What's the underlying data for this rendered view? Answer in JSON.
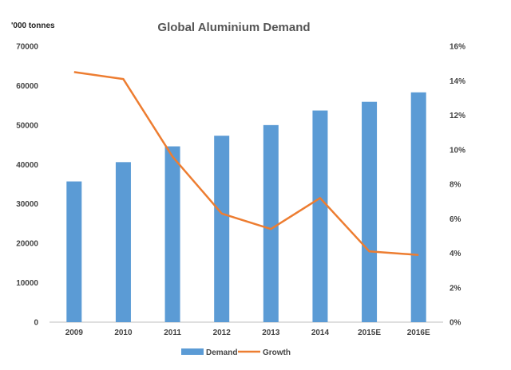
{
  "chart_data": {
    "type": "bar",
    "title": "Global Aluminium Demand",
    "ylabel": "'000 tonnes",
    "categories": [
      "2009",
      "2010",
      "2011",
      "2012",
      "2013",
      "2014",
      "2015E",
      "2016E"
    ],
    "series": [
      {
        "name": "Demand",
        "type": "bar",
        "axis": "left",
        "color": "#5b9bd5",
        "values": [
          35700,
          40600,
          44600,
          47300,
          50000,
          53700,
          55900,
          58300
        ]
      },
      {
        "name": "Growth",
        "type": "line",
        "axis": "right",
        "color": "#ed7d31",
        "values": [
          14.5,
          14.1,
          9.6,
          6.3,
          5.4,
          7.2,
          4.1,
          3.9
        ]
      }
    ],
    "ylim": [
      0,
      70000
    ],
    "y_ticks": [
      "0",
      "10000",
      "20000",
      "30000",
      "40000",
      "50000",
      "60000",
      "70000"
    ],
    "y2lim": [
      0,
      16
    ],
    "y2_ticks": [
      "0%",
      "2%",
      "4%",
      "6%",
      "8%",
      "10%",
      "12%",
      "14%",
      "16%"
    ],
    "grid": false,
    "legend_position": "bottom"
  }
}
